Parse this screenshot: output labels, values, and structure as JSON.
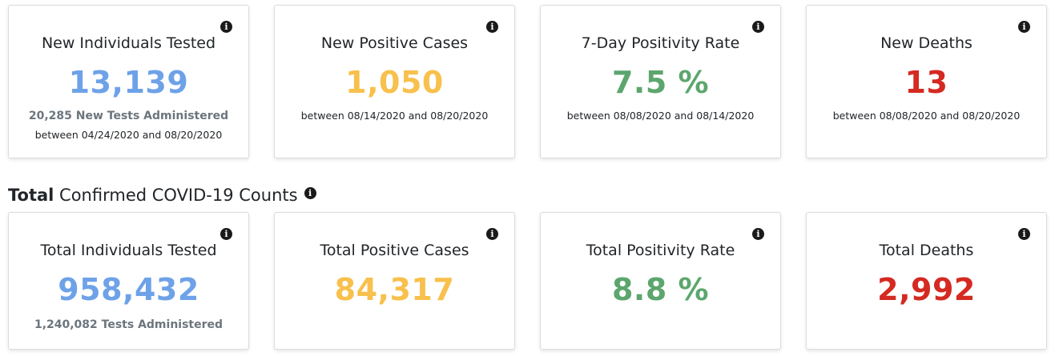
{
  "recent": {
    "cards": [
      {
        "title": "New Individuals Tested",
        "value": "13,139",
        "sub": "20,285 New Tests Administered",
        "range": "between 04/24/2020 and 08/20/2020",
        "color": "#6ea2e8"
      },
      {
        "title": "New Positive Cases",
        "value": "1,050",
        "range": "between 08/14/2020 and 08/20/2020",
        "color": "#f8c04c"
      },
      {
        "title": "7-Day Positivity Rate",
        "value": "7.5 %",
        "range": "between 08/08/2020 and 08/14/2020",
        "color": "#5ca66d"
      },
      {
        "title": "New Deaths",
        "value": "13",
        "range": "between 08/08/2020 and 08/20/2020",
        "color": "#d42a22"
      }
    ]
  },
  "totals_heading": {
    "bold": "Total",
    "rest": " Confirmed COVID-19 Counts"
  },
  "totals": {
    "cards": [
      {
        "title": "Total Individuals Tested",
        "value": "958,432",
        "sub": "1,240,082 Tests Administered",
        "color": "#6ea2e8"
      },
      {
        "title": "Total Positive Cases",
        "value": "84,317",
        "color": "#f8c04c"
      },
      {
        "title": "Total Positivity Rate",
        "value": "8.8 %",
        "color": "#5ca66d"
      },
      {
        "title": "Total Deaths",
        "value": "2,992",
        "color": "#d42a22"
      }
    ]
  },
  "icons": {
    "info": "info-icon"
  }
}
